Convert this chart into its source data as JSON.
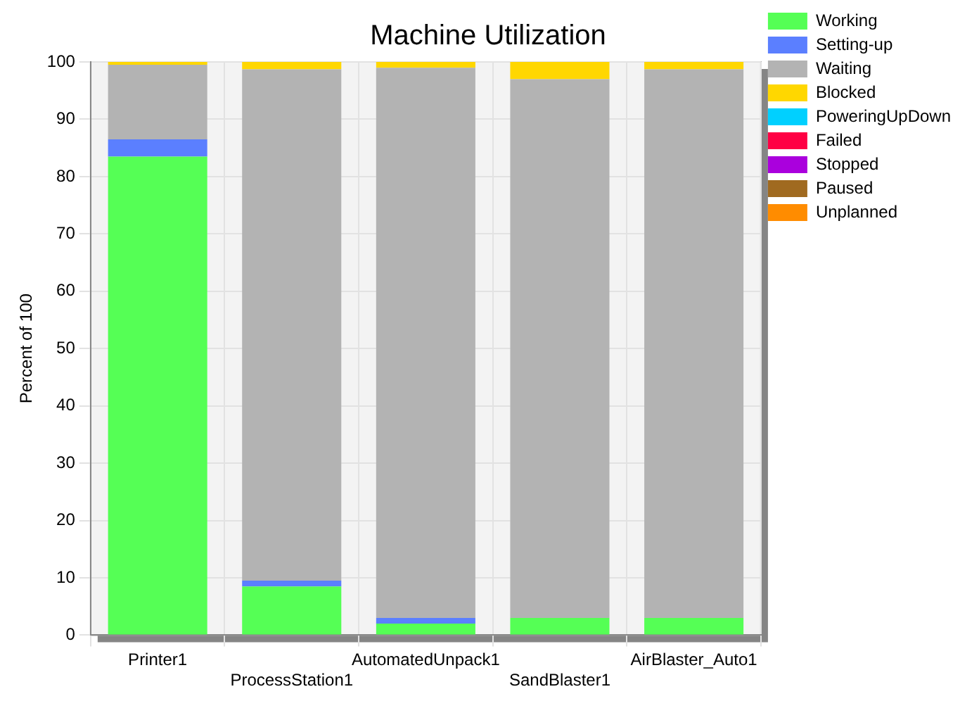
{
  "chart_data": {
    "type": "bar",
    "title": "Machine Utilization",
    "ylabel": "Percent of 100",
    "stacked": true,
    "categories": [
      "Printer1",
      "ProcessStation1",
      "AutomatedUnpack1",
      "SandBlaster1",
      "AirBlaster_Auto1"
    ],
    "series": [
      {
        "name": "Working",
        "color": "#55ff55",
        "values": [
          83.5,
          8.5,
          2,
          3,
          3
        ]
      },
      {
        "name": "Setting-up",
        "color": "#5b7fff",
        "values": [
          3,
          1,
          1,
          0,
          0
        ]
      },
      {
        "name": "Waiting",
        "color": "#b3b3b3",
        "values": [
          13,
          89.2,
          96,
          94,
          95.7
        ]
      },
      {
        "name": "Blocked",
        "color": "#ffd700",
        "values": [
          0.5,
          1.3,
          1,
          3,
          1.3
        ]
      },
      {
        "name": "PoweringUpDown",
        "color": "#00d0ff",
        "values": [
          0,
          0,
          0,
          0,
          0
        ]
      },
      {
        "name": "Failed",
        "color": "#ff0044",
        "values": [
          0,
          0,
          0,
          0,
          0
        ]
      },
      {
        "name": "Stopped",
        "color": "#aa00dd",
        "values": [
          0,
          0,
          0,
          0,
          0
        ]
      },
      {
        "name": "Paused",
        "color": "#a06a20",
        "values": [
          0,
          0,
          0,
          0,
          0
        ]
      },
      {
        "name": "Unplanned",
        "color": "#ff8c00",
        "values": [
          0,
          0,
          0,
          0,
          0
        ]
      }
    ],
    "ylim": [
      0,
      100
    ],
    "yticks": [
      0,
      10,
      20,
      30,
      40,
      50,
      60,
      70,
      80,
      90,
      100
    ],
    "grid": true,
    "legend": "right"
  }
}
